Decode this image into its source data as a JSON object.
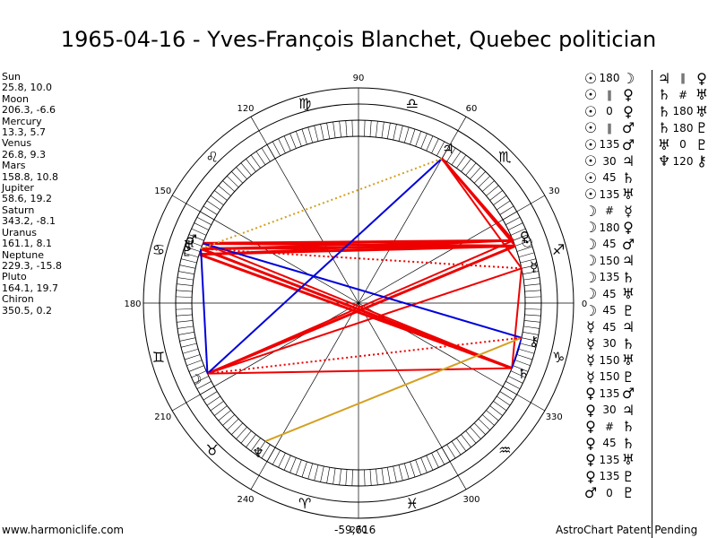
{
  "title": "1965-04-16 - Yves-François Blanchet, Quebec politician",
  "planets": [
    {
      "name": "Sun",
      "coords": "25.8, 10.0",
      "glyph": "☉"
    },
    {
      "name": "Moon",
      "coords": "206.3, -6.6",
      "glyph": "☽"
    },
    {
      "name": "Mercury",
      "coords": "13.3, 5.7",
      "glyph": "☿"
    },
    {
      "name": "Venus",
      "coords": "26.8, 9.3",
      "glyph": "♀"
    },
    {
      "name": "Mars",
      "coords": "158.8, 10.8",
      "glyph": "♂"
    },
    {
      "name": "Jupiter",
      "coords": "58.6, 19.2",
      "glyph": "♃"
    },
    {
      "name": "Saturn",
      "coords": "343.2, -8.1",
      "glyph": "♄"
    },
    {
      "name": "Uranus",
      "coords": "161.1, 8.1",
      "glyph": "♅"
    },
    {
      "name": "Neptune",
      "coords": "229.3, -15.8",
      "glyph": "♆"
    },
    {
      "name": "Pluto",
      "coords": "164.1, 19.7",
      "glyph": "♇"
    },
    {
      "name": "Chiron",
      "coords": "350.5, 0.2",
      "glyph": "⚷"
    }
  ],
  "degree_labels": [
    "0",
    "30",
    "60",
    "90",
    "120",
    "150",
    "180",
    "210",
    "240",
    "270",
    "300",
    "330"
  ],
  "zodiac_signs": [
    "♈",
    "♉",
    "♊",
    "♋",
    "♌",
    "♍",
    "♎",
    "♏",
    "♐",
    "♑",
    "♒",
    "♓"
  ],
  "aspects_col1": [
    {
      "p1": "☉",
      "asp": "180",
      "p2": "☽"
    },
    {
      "p1": "☉",
      "asp": "∥",
      "p2": "♀"
    },
    {
      "p1": "☉",
      "asp": "0",
      "p2": "♀"
    },
    {
      "p1": "☉",
      "asp": "∥",
      "p2": "♂"
    },
    {
      "p1": "☉",
      "asp": "135",
      "p2": "♂"
    },
    {
      "p1": "☉",
      "asp": "30",
      "p2": "♃"
    },
    {
      "p1": "☉",
      "asp": "45",
      "p2": "♄"
    },
    {
      "p1": "☉",
      "asp": "135",
      "p2": "♅"
    },
    {
      "p1": "☽",
      "asp": "#",
      "p2": "☿"
    },
    {
      "p1": "☽",
      "asp": "180",
      "p2": "♀"
    },
    {
      "p1": "☽",
      "asp": "45",
      "p2": "♂"
    },
    {
      "p1": "☽",
      "asp": "150",
      "p2": "♃"
    },
    {
      "p1": "☽",
      "asp": "135",
      "p2": "♄"
    },
    {
      "p1": "☽",
      "asp": "45",
      "p2": "♅"
    },
    {
      "p1": "☽",
      "asp": "45",
      "p2": "♇"
    },
    {
      "p1": "☿",
      "asp": "45",
      "p2": "♃"
    },
    {
      "p1": "☿",
      "asp": "30",
      "p2": "♄"
    },
    {
      "p1": "☿",
      "asp": "150",
      "p2": "♅"
    },
    {
      "p1": "☿",
      "asp": "150",
      "p2": "♇"
    },
    {
      "p1": "♀",
      "asp": "135",
      "p2": "♂"
    },
    {
      "p1": "♀",
      "asp": "30",
      "p2": "♃"
    },
    {
      "p1": "♀",
      "asp": "#",
      "p2": "♄"
    },
    {
      "p1": "♀",
      "asp": "45",
      "p2": "♄"
    },
    {
      "p1": "♀",
      "asp": "135",
      "p2": "♅"
    },
    {
      "p1": "♀",
      "asp": "135",
      "p2": "♇"
    },
    {
      "p1": "♂",
      "asp": "0",
      "p2": "♇"
    }
  ],
  "aspects_col2": [
    {
      "p1": "♃",
      "asp": "∥",
      "p2": "♀"
    },
    {
      "p1": "♄",
      "asp": "#",
      "p2": "♅"
    },
    {
      "p1": "♄",
      "asp": "180",
      "p2": "♅"
    },
    {
      "p1": "♄",
      "asp": "180",
      "p2": "♇"
    },
    {
      "p1": "♅",
      "asp": "0",
      "p2": "♇"
    },
    {
      "p1": "♆",
      "asp": "120",
      "p2": "⚷"
    }
  ],
  "footer": {
    "website": "www.harmoniclife.com",
    "center_value": "-59,616",
    "credit": "AstroChart Patent Pending"
  },
  "colors": {
    "red": "#ee0000",
    "blue": "#0000dd",
    "gold": "#d4a020"
  }
}
